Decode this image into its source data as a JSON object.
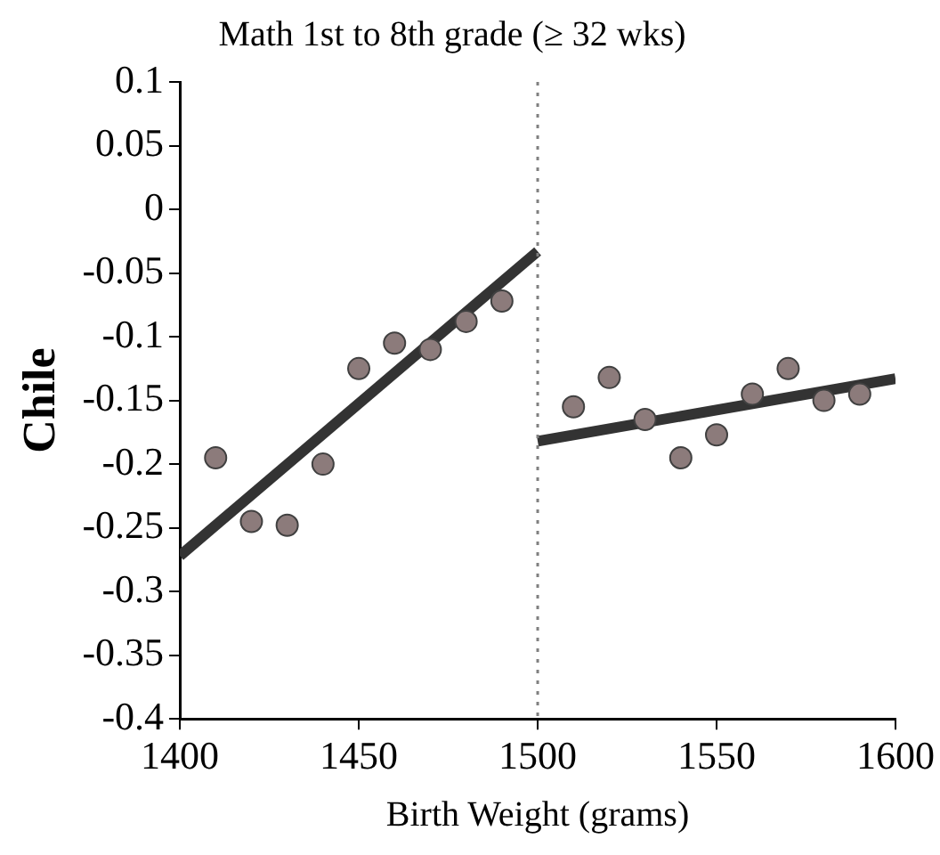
{
  "chart_data": {
    "type": "scatter",
    "title": "Math 1st to 8th grade (≥ 32 wks)",
    "xlabel": "Birth Weight (grams)",
    "ylabel": "Chile",
    "xlim": [
      1400,
      1600
    ],
    "xticks": [
      1400,
      1450,
      1500,
      1550,
      1600
    ],
    "ylim": [
      -0.4,
      0.1
    ],
    "yticks": [
      -0.4,
      -0.35,
      -0.3,
      -0.25,
      -0.2,
      -0.15,
      -0.1,
      -0.05,
      0,
      0.05,
      0.1
    ],
    "grid": false,
    "legend": false,
    "marker": "circle",
    "ref_lines": [
      {
        "axis": "x",
        "value": 1500,
        "color": "#808080",
        "line_style": "dotted"
      }
    ],
    "series": [
      {
        "color": "#8c7b7b",
        "x": [
          1410,
          1420,
          1430,
          1440,
          1450,
          1460,
          1470,
          1480,
          1490,
          1510,
          1520,
          1530,
          1540,
          1550,
          1560,
          1570,
          1580,
          1590
        ],
        "values": [
          -0.195,
          -0.245,
          -0.248,
          -0.2,
          -0.125,
          -0.105,
          -0.11,
          -0.088,
          -0.072,
          -0.155,
          -0.132,
          -0.165,
          -0.195,
          -0.177,
          -0.145,
          -0.125,
          -0.15,
          -0.145
        ]
      },
      {
        "type": "line",
        "color": "#333333",
        "line_style": "solid",
        "marker": "none",
        "x": [
          1400,
          1500
        ],
        "values": [
          -0.272,
          -0.033
        ]
      },
      {
        "type": "line",
        "color": "#333333",
        "line_style": "solid",
        "marker": "none",
        "x": [
          1500,
          1600
        ],
        "values": [
          -0.182,
          -0.133
        ]
      }
    ]
  }
}
